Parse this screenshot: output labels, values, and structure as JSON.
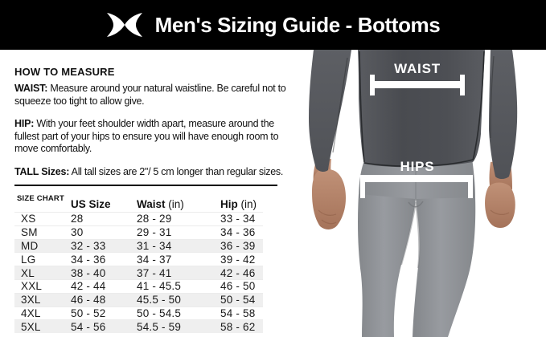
{
  "header": {
    "title": "Men's Sizing Guide - Bottoms",
    "logo": "under-armour-logo"
  },
  "copy": {
    "heading": "HOW TO MEASURE",
    "waist_label": "WAIST:",
    "waist_text": "Measure around your natural waistline. Be careful not to squeeze too tight to allow give.",
    "hip_label": "HIP:",
    "hip_text": "With your feet shoulder width apart, measure around the fullest part of your hips to ensure you will have enough room to move comfortably.",
    "tall_label": "TALL Sizes:",
    "tall_text": "All tall sizes are 2\"/ 5 cm longer than regular sizes."
  },
  "size_chart": {
    "label": "SIZE CHART",
    "columns": [
      {
        "name": "US Size",
        "unit": ""
      },
      {
        "name": "Waist",
        "unit": "(in)"
      },
      {
        "name": "Hip",
        "unit": "(in)"
      }
    ],
    "rows": [
      {
        "size": "XS",
        "us": "28",
        "waist": "28 - 29",
        "hip": "33 - 34",
        "shaded": false
      },
      {
        "size": "SM",
        "us": "30",
        "waist": "29 - 31",
        "hip": "34 - 36",
        "shaded": false
      },
      {
        "size": "MD",
        "us": "32 - 33",
        "waist": "31 - 34",
        "hip": "36 - 39",
        "shaded": true
      },
      {
        "size": "LG",
        "us": "34 - 36",
        "waist": "34 - 37",
        "hip": "39 - 42",
        "shaded": false
      },
      {
        "size": "XL",
        "us": "38 - 40",
        "waist": "37 - 41",
        "hip": "42 - 46",
        "shaded": true
      },
      {
        "size": "XXL",
        "us": "42 - 44",
        "waist": "41 - 45.5",
        "hip": "46 - 50",
        "shaded": false
      },
      {
        "size": "3XL",
        "us": "46 - 48",
        "waist": "45.5 - 50",
        "hip": "50 - 54",
        "shaded": true
      },
      {
        "size": "4XL",
        "us": "50 - 52",
        "waist": "50 - 54.5",
        "hip": "54 - 58",
        "shaded": false
      },
      {
        "size": "5XL",
        "us": "54 - 56",
        "waist": "54.5 - 59",
        "hip": "58 - 62",
        "shaded": true
      }
    ]
  },
  "figure": {
    "waist_label": "WAIST",
    "hips_label": "HIPS"
  },
  "colors": {
    "header_bg": "#000000",
    "header_text": "#ffffff",
    "row_stripe": "#efefef",
    "shirt": "#4d4f54",
    "leggings": "#8f9296",
    "skin": "#b5836a",
    "measure_overlay": "#ffffff"
  }
}
